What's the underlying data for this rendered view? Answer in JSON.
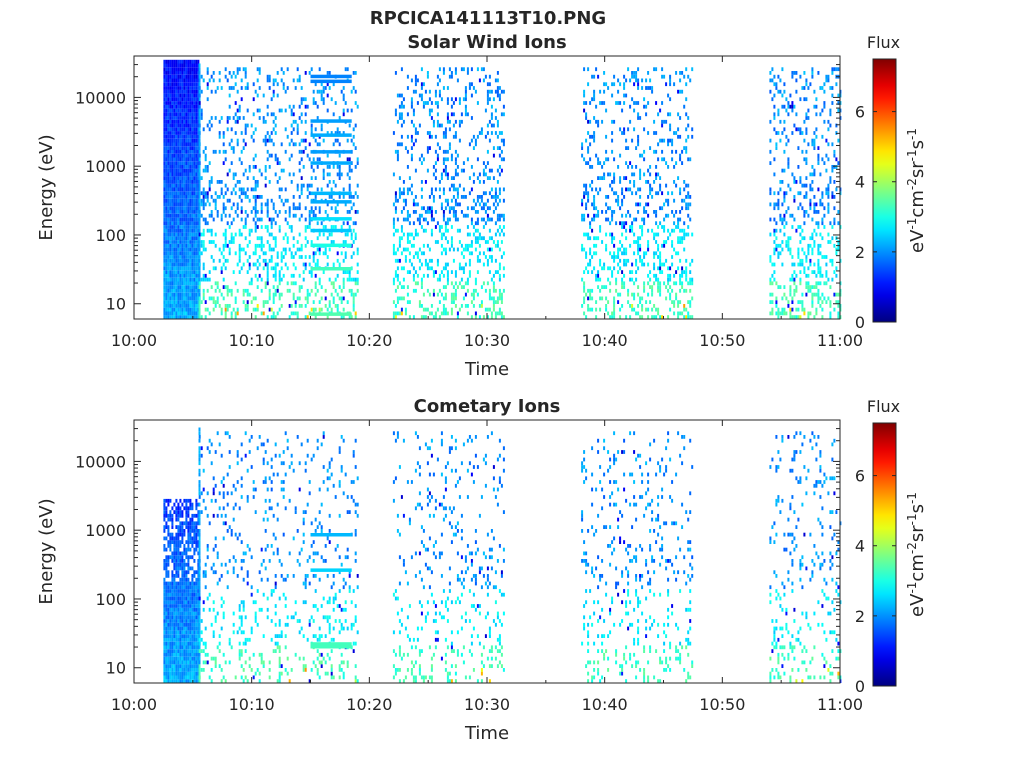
{
  "figure_title": "RPCICA141113T10.PNG",
  "chart_data": [
    {
      "type": "heatmap",
      "title": "Solar Wind Ions",
      "xlabel": "Time",
      "ylabel": "Energy (eV)",
      "y_scale": "log",
      "xlim": [
        "10:00",
        "11:00"
      ],
      "ylim": [
        6,
        40000
      ],
      "xticks": [
        "10:00",
        "10:10",
        "10:20",
        "10:30",
        "10:40",
        "10:50",
        "11:00"
      ],
      "yticks": [
        "10",
        "100",
        "1000",
        "10000"
      ],
      "colorbar": {
        "title": "Flux",
        "label_prefix": "eV",
        "label_text": "eV-1cm-2sr-1s-1",
        "range": [
          0,
          7.5
        ],
        "ticks": [
          "0",
          "2",
          "4",
          "6"
        ],
        "colormap": "jet"
      },
      "data_blocks": [
        {
          "start": "10:02:30",
          "end": "10:05:30",
          "description_energy_range": [
            6,
            36000
          ],
          "flux_range": [
            0.5,
            2.5
          ]
        },
        {
          "start": "10:05:30",
          "end": "10:19:00",
          "sparse": true
        },
        {
          "start": "10:22:00",
          "end": "10:31:30",
          "sparse": true
        },
        {
          "start": "10:38:00",
          "end": "10:47:30",
          "sparse": true
        },
        {
          "start": "10:54:00",
          "end": "11:00:00",
          "sparse": true
        }
      ]
    },
    {
      "type": "heatmap",
      "title": "Cometary Ions",
      "xlabel": "Time",
      "ylabel": "Energy (eV)",
      "y_scale": "log",
      "xlim": [
        "10:00",
        "11:00"
      ],
      "ylim": [
        6,
        40000
      ],
      "xticks": [
        "10:00",
        "10:10",
        "10:20",
        "10:30",
        "10:40",
        "10:50",
        "11:00"
      ],
      "yticks": [
        "10",
        "100",
        "1000",
        "10000"
      ],
      "colorbar": {
        "title": "Flux",
        "label_prefix": "eV",
        "label_text": "eV-1cm-2sr-1s-1",
        "range": [
          0,
          7.5
        ],
        "ticks": [
          "0",
          "2",
          "4",
          "6"
        ],
        "colormap": "jet"
      },
      "data_blocks": [
        {
          "start": "10:02:30",
          "end": "10:05:30",
          "description_energy_range": [
            6,
            2800
          ],
          "flux_range": [
            0.5,
            2.5
          ]
        },
        {
          "start": "10:05:30",
          "end": "10:19:00",
          "sparse": true
        },
        {
          "start": "10:22:00",
          "end": "10:31:30",
          "sparse": true
        },
        {
          "start": "10:38:00",
          "end": "10:47:30",
          "sparse": true
        },
        {
          "start": "10:54:00",
          "end": "11:00:00",
          "sparse": true
        }
      ]
    }
  ]
}
